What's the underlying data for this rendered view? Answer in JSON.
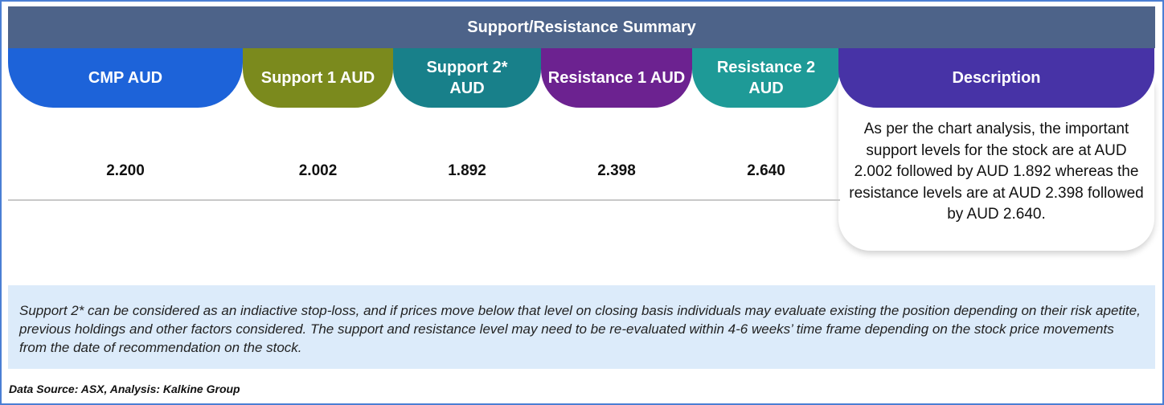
{
  "title": "Support/Resistance Summary",
  "columns": [
    {
      "label": "CMP AUD",
      "value": "2.200",
      "color": "#1d63d9"
    },
    {
      "label": "Support 1 AUD",
      "value": "2.002",
      "color": "#7b8a1d"
    },
    {
      "label": "Support 2* AUD",
      "value": "1.892",
      "color": "#18808a"
    },
    {
      "label": "Resistance 1 AUD",
      "value": "2.398",
      "color": "#6c2290"
    },
    {
      "label": "Resistance 2 AUD",
      "value": "2.640",
      "color": "#1e9a97"
    }
  ],
  "description": {
    "label": "Description",
    "color": "#4733a6",
    "text": "As per the chart analysis, the important support levels for the stock are at AUD 2.002 followed by AUD 1.892 whereas the resistance levels are at AUD 2.398 followed by AUD 2.640."
  },
  "note": "Support 2* can be considered as an indiactive stop-loss, and if prices move below that level on closing basis individuals may evaluate existing the position depending on their risk apetite, previous holdings and other factors considered. The support and resistance level may need to be re-evaluated within 4-6 weeks’ time frame depending on the stock price movements from  the date of recommendation on the stock.",
  "source": "Data Source: ASX, Analysis: Kalkine Group"
}
